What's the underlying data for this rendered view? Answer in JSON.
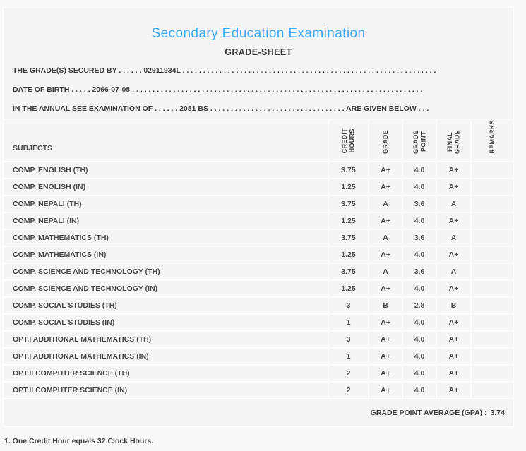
{
  "page": {
    "title": "Secondary Education Examination",
    "subtitle": "GRADE-SHEET",
    "title_color": "#3fa9f5"
  },
  "info_lines": [
    {
      "label": "THE GRADE(S) SECURED BY",
      "dots1": ". . . . . .",
      "value": "02911934L",
      "dots2": ". . . . . . . . . . . . . . . . . . . . . . . . . . . . . . . . . . . . . . . . . . . . . . . . . . . . . . . . . . . . . ."
    },
    {
      "label": "DATE OF BIRTH",
      "dots1": ". . . . .",
      "value": "2066-07-08",
      "dots2": ". . . . . . . . . . . . . . . . . . . . . . . . . . . . . . . . . . . . . . . . . . . . . . . . . . . . . . . . . . . . . . . . . . . . . . ."
    },
    {
      "label": "IN THE ANNUAL SEE EXAMINATION OF",
      "dots1": ". . . . . .",
      "value": "2081 BS",
      "dots2": ". . . . . . . . . . . . . . . . . . . . . . . . . . . . . . . . .",
      "suffix": "ARE GIVEN BELOW",
      "dots3": ". . ."
    }
  ],
  "table": {
    "subjects_label": "SUBJECTS",
    "columns": [
      {
        "id": "credit_hours",
        "label": "CREDIT\nHOURS"
      },
      {
        "id": "grade",
        "label": "GRADE"
      },
      {
        "id": "grade_point",
        "label": "GRADE\nPOINT"
      },
      {
        "id": "final_grade",
        "label": "FINAL\nGRADE"
      },
      {
        "id": "remarks",
        "label": "REMARKS"
      }
    ],
    "rows": [
      {
        "subject": "COMP. ENGLISH (TH)",
        "credit_hours": "3.75",
        "grade": "A+",
        "grade_point": "4.0",
        "final_grade": "A+",
        "remarks": ""
      },
      {
        "subject": "COMP. ENGLISH (IN)",
        "credit_hours": "1.25",
        "grade": "A+",
        "grade_point": "4.0",
        "final_grade": "A+",
        "remarks": ""
      },
      {
        "subject": "COMP. NEPALI (TH)",
        "credit_hours": "3.75",
        "grade": "A",
        "grade_point": "3.6",
        "final_grade": "A",
        "remarks": ""
      },
      {
        "subject": "COMP. NEPALI (IN)",
        "credit_hours": "1.25",
        "grade": "A+",
        "grade_point": "4.0",
        "final_grade": "A+",
        "remarks": ""
      },
      {
        "subject": "COMP. MATHEMATICS (TH)",
        "credit_hours": "3.75",
        "grade": "A",
        "grade_point": "3.6",
        "final_grade": "A",
        "remarks": ""
      },
      {
        "subject": "COMP. MATHEMATICS (IN)",
        "credit_hours": "1.25",
        "grade": "A+",
        "grade_point": "4.0",
        "final_grade": "A+",
        "remarks": ""
      },
      {
        "subject": "COMP. SCIENCE AND TECHNOLOGY (TH)",
        "credit_hours": "3.75",
        "grade": "A",
        "grade_point": "3.6",
        "final_grade": "A",
        "remarks": ""
      },
      {
        "subject": "COMP. SCIENCE AND TECHNOLOGY (IN)",
        "credit_hours": "1.25",
        "grade": "A+",
        "grade_point": "4.0",
        "final_grade": "A+",
        "remarks": ""
      },
      {
        "subject": "COMP. SOCIAL STUDIES (TH)",
        "credit_hours": "3",
        "grade": "B",
        "grade_point": "2.8",
        "final_grade": "B",
        "remarks": ""
      },
      {
        "subject": "COMP. SOCIAL STUDIES (IN)",
        "credit_hours": "1",
        "grade": "A+",
        "grade_point": "4.0",
        "final_grade": "A+",
        "remarks": ""
      },
      {
        "subject": "OPT.I ADDITIONAL MATHEMATICS (TH)",
        "credit_hours": "3",
        "grade": "A+",
        "grade_point": "4.0",
        "final_grade": "A+",
        "remarks": ""
      },
      {
        "subject": "OPT.I ADDITIONAL MATHEMATICS (IN)",
        "credit_hours": "1",
        "grade": "A+",
        "grade_point": "4.0",
        "final_grade": "A+",
        "remarks": ""
      },
      {
        "subject": "OPT.II COMPUTER SCIENCE (TH)",
        "credit_hours": "2",
        "grade": "A+",
        "grade_point": "4.0",
        "final_grade": "A+",
        "remarks": ""
      },
      {
        "subject": "OPT.II COMPUTER SCIENCE (IN)",
        "credit_hours": "2",
        "grade": "A+",
        "grade_point": "4.0",
        "final_grade": "A+",
        "remarks": ""
      }
    ]
  },
  "summary": {
    "gpa_label": "GRADE POINT AVERAGE (GPA) :",
    "gpa_value": "3.74"
  },
  "footer": {
    "note": "1. One Credit Hour equals 32 Clock Hours."
  }
}
